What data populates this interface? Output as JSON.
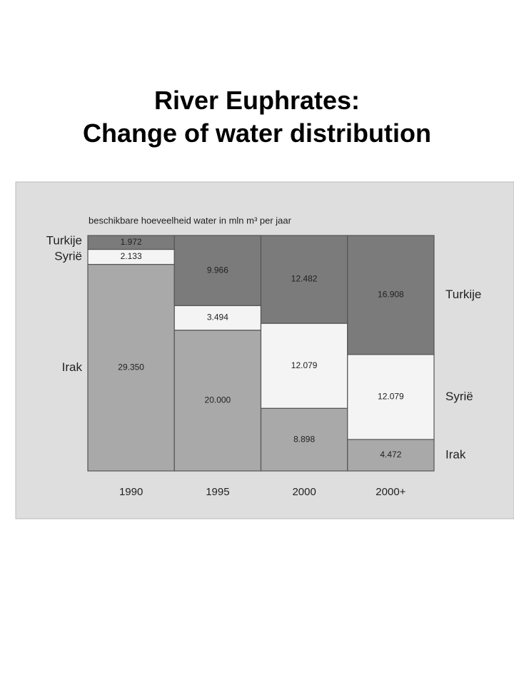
{
  "chart_data": {
    "type": "bar",
    "stacked": true,
    "title": "River Euphrates:\nChange of water distribution",
    "subtitle": "beschikbare hoeveelheid water in mln m³ per jaar",
    "categories": [
      "1990",
      "1995",
      "2000",
      "2000+"
    ],
    "series": [
      {
        "name": "Irak",
        "color": "#a9a9a9",
        "values": [
          29350,
          20000,
          8898,
          4472
        ],
        "value_labels": [
          "29.350",
          "20.000",
          "8.898",
          "4.472"
        ]
      },
      {
        "name": "Syrië",
        "color": "#f4f4f4",
        "values": [
          2133,
          3494,
          12079,
          12079
        ],
        "value_labels": [
          "2.133",
          "3.494",
          "12.079",
          "12.079"
        ]
      },
      {
        "name": "Turkije",
        "color": "#7b7b7b",
        "values": [
          1972,
          9966,
          12482,
          16908
        ],
        "value_labels": [
          "1.972",
          "9.966",
          "12.482",
          "16.908"
        ]
      }
    ]
  }
}
